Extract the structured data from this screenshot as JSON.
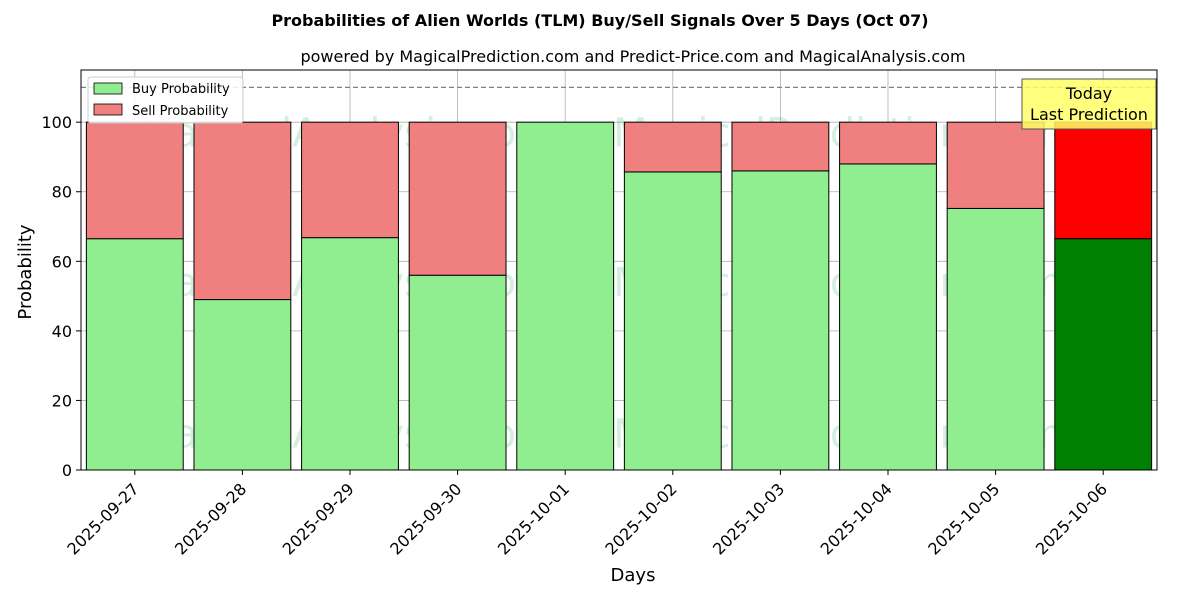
{
  "chart_data": {
    "type": "bar",
    "stacked": true,
    "title": "Probabilities of Alien Worlds (TLM) Buy/Sell Signals Over 5 Days (Oct 07)",
    "subtitle": "powered by MagicalPrediction.com and Predict-Price.com and MagicalAnalysis.com",
    "xlabel": "Days",
    "ylabel": "Probability",
    "ylim": [
      0,
      115
    ],
    "yticks": [
      0,
      20,
      40,
      60,
      80,
      100
    ],
    "grid": true,
    "legend_position": "top-left",
    "reference_line": 110,
    "categories": [
      "2025-09-27",
      "2025-09-28",
      "2025-09-29",
      "2025-09-30",
      "2025-10-01",
      "2025-10-02",
      "2025-10-03",
      "2025-10-04",
      "2025-10-05",
      "2025-10-06"
    ],
    "series": [
      {
        "name": "Buy Probability",
        "values": [
          66.5,
          49,
          66.8,
          56,
          100,
          85.7,
          86,
          88,
          75.2,
          66.5
        ],
        "color": "#90ee90",
        "highlight_color": "#008000"
      },
      {
        "name": "Sell Probability",
        "values": [
          33.5,
          51,
          33.2,
          44,
          0,
          14.3,
          14,
          12,
          24.8,
          33.5
        ],
        "color": "#f08080",
        "highlight_color": "#ff0000"
      }
    ],
    "highlight_index": 9,
    "annotation": {
      "line1": "Today",
      "line2": "Last Prediction",
      "background": "#ffff66"
    },
    "watermarks": [
      "MagicalAnalysis.com",
      "MagicalPrediction.com"
    ]
  }
}
